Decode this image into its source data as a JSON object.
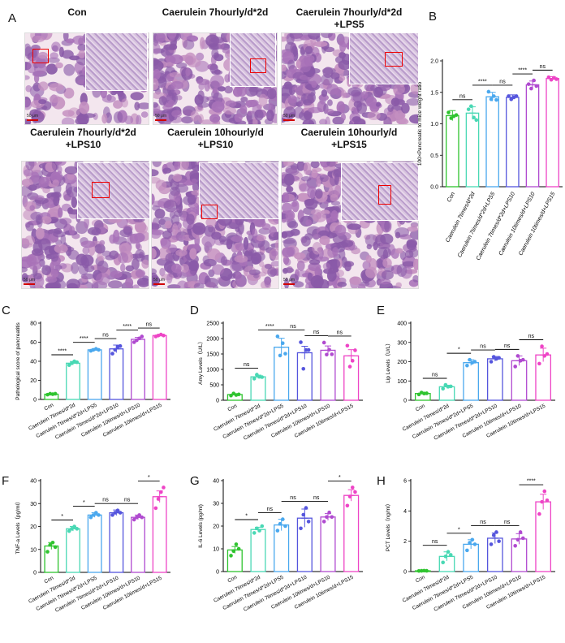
{
  "panel_letters": [
    "A",
    "B",
    "C",
    "D",
    "E",
    "F",
    "G",
    "H"
  ],
  "histology": {
    "panels": [
      {
        "title": "Con"
      },
      {
        "title": "Caerulein 7hourly/d*2d"
      },
      {
        "title": "Caerulein 7hourly/d*2d\n+LPS5"
      },
      {
        "title": "Caerulein 7hourly/d*2d\n+LPS10"
      },
      {
        "title": "Caerulein 10hourly/d\n+LPS10"
      },
      {
        "title": "Caerulein 10hourly/d\n+LPS15"
      }
    ],
    "scale_label": "50 μm"
  },
  "colors": {
    "g1": "#2fc42f",
    "g2": "#49d8b4",
    "g3": "#4aa8ee",
    "g4": "#5555dd",
    "g5": "#b04ad0",
    "g6": "#ee44c6",
    "tissue_pink": "#e8c8dc",
    "tissue_purple": "#8a5aa8",
    "redbox": "#e00000"
  },
  "chart_data": [
    {
      "id": "B",
      "type": "bar",
      "categories": [
        "Con",
        "Caerulein 7times/d*2d",
        "Caerulein 7times/d*2d+LPS5",
        "Caerulein 7times/d*2d+LPS10",
        "Caerulein 10times/d+LPS10",
        "Caerulein 10times/d+LPS15"
      ],
      "values": [
        1.13,
        1.17,
        1.43,
        1.42,
        1.62,
        1.72
      ],
      "errors": [
        0.08,
        0.1,
        0.07,
        0.04,
        0.06,
        0.03
      ],
      "points": [
        [
          1.18,
          1.09,
          1.12,
          1.14
        ],
        [
          1.23,
          1.28,
          1.1,
          1.06
        ],
        [
          1.51,
          1.39,
          1.44,
          1.38
        ],
        [
          1.44,
          1.39,
          1.42,
          1.44
        ],
        [
          1.63,
          1.56,
          1.69,
          1.6
        ],
        [
          1.74,
          1.7,
          1.73,
          1.71
        ]
      ],
      "ylabel": "100×Pancreatic to mice weight ratio",
      "ylim": [
        0,
        2.0
      ],
      "yticks": [
        "0.0",
        "0.5",
        "1.0",
        "1.5",
        "2.0"
      ],
      "significance": [
        {
          "a": 0,
          "b": 1,
          "label": "ns"
        },
        {
          "a": 1,
          "b": 2,
          "label": "****"
        },
        {
          "a": 2,
          "b": 3,
          "label": "ns"
        },
        {
          "a": 3,
          "b": 4,
          "label": "****"
        },
        {
          "a": 4,
          "b": 5,
          "label": "ns"
        }
      ]
    },
    {
      "id": "C",
      "type": "bar",
      "categories": [
        "Con",
        "Caerulein 7times/d*2d",
        "Caerulein 7times/d*2d+LPS5",
        "Caerulein 7times/d*2d+LPS10",
        "Caerulein 10times/d+LPS10",
        "Caerulein 10times/d+LPS15"
      ],
      "values": [
        5.5,
        38,
        52,
        53,
        63,
        67
      ],
      "errors": [
        0.6,
        1.8,
        1.0,
        4.0,
        2.0,
        0.8
      ],
      "points": [
        [
          5,
          6,
          5.5,
          6
        ],
        [
          36,
          38,
          40,
          39
        ],
        [
          51,
          52,
          53,
          52
        ],
        [
          48,
          52,
          55,
          56
        ],
        [
          60,
          62,
          64,
          66
        ],
        [
          66,
          67,
          68,
          67
        ]
      ],
      "ylabel": "Pathological score of pancreatitis",
      "ylim": [
        0,
        80
      ],
      "yticks": [
        "0",
        "20",
        "40",
        "60",
        "80"
      ],
      "significance": [
        {
          "a": 0,
          "b": 1,
          "label": "****"
        },
        {
          "a": 1,
          "b": 2,
          "label": "****"
        },
        {
          "a": 2,
          "b": 3,
          "label": "ns"
        },
        {
          "a": 3,
          "b": 4,
          "label": "****"
        },
        {
          "a": 4,
          "b": 5,
          "label": "ns"
        }
      ]
    },
    {
      "id": "D",
      "type": "bar",
      "categories": [
        "Con",
        "Caerulein 7times/d*2d",
        "Caerulein 7times/d*2d+LPS5",
        "Caerulein 7times/d*2d+LPS10",
        "Caerulein 10times/d+LPS10",
        "Caerulein 10times/d+LPS15"
      ],
      "values": [
        185,
        760,
        1720,
        1540,
        1620,
        1440
      ],
      "errors": [
        20,
        55,
        290,
        210,
        140,
        200
      ],
      "points": [
        [
          150,
          220,
          170,
          190
        ],
        [
          700,
          830,
          760,
          750
        ],
        [
          2070,
          1450,
          1850,
          1510
        ],
        [
          1880,
          1020,
          1630,
          1630
        ],
        [
          1870,
          1480,
          1640,
          1490
        ],
        [
          1770,
          1090,
          1280,
          1620
        ]
      ],
      "ylabel": "Amy Levels（U/L）",
      "ylim": [
        0,
        2500
      ],
      "yticks": [
        "0",
        "500",
        "1000",
        "1500",
        "2000",
        "2500"
      ],
      "significance": [
        {
          "a": 0,
          "b": 1,
          "label": "ns"
        },
        {
          "a": 1,
          "b": 2,
          "label": "****"
        },
        {
          "a": 2,
          "b": 3,
          "label": "ns"
        },
        {
          "a": 3,
          "b": 4,
          "label": "ns"
        },
        {
          "a": 4,
          "b": 5,
          "label": "ns"
        }
      ]
    },
    {
      "id": "E",
      "type": "bar",
      "categories": [
        "Con",
        "Caerulein 7times/d*2d",
        "Caerulein 7times/d*2d+LPS5",
        "Caerulein 7times/d*2d+LPS10",
        "Caerulein 10times/d+LPS10",
        "Caerulein 10times/d+LPS15"
      ],
      "values": [
        35,
        70,
        195,
        215,
        205,
        235
      ],
      "errors": [
        4,
        8,
        15,
        12,
        25,
        35
      ],
      "points": [
        [
          30,
          40,
          35,
          36
        ],
        [
          60,
          80,
          70,
          72
        ],
        [
          180,
          210,
          195,
          200
        ],
        [
          200,
          225,
          215,
          220
        ],
        [
          175,
          230,
          205,
          210
        ],
        [
          190,
          280,
          230,
          240
        ]
      ],
      "ylabel": "Lip Levels（U/L）",
      "ylim": [
        0,
        400
      ],
      "yticks": [
        "0",
        "100",
        "200",
        "300",
        "400"
      ],
      "significance": [
        {
          "a": 0,
          "b": 1,
          "label": "ns"
        },
        {
          "a": 1,
          "b": 2,
          "label": "*"
        },
        {
          "a": 2,
          "b": 3,
          "label": "ns"
        },
        {
          "a": 3,
          "b": 4,
          "label": "ns"
        },
        {
          "a": 4,
          "b": 5,
          "label": "ns"
        }
      ]
    },
    {
      "id": "F",
      "type": "bar",
      "categories": [
        "Con",
        "Caerulein 7times/d*2d",
        "Caerulein 7times/d*2d+LPS5",
        "Caerulein 7times/d*2d+LPS10",
        "Caerulein 10times/d+LPS10",
        "Caerulein 10times/d+LPS15"
      ],
      "values": [
        11.5,
        19,
        25,
        26,
        24,
        33
      ],
      "errors": [
        1.5,
        1.0,
        1.0,
        1.2,
        1.0,
        2.5
      ],
      "points": [
        [
          9,
          12,
          13,
          11
        ],
        [
          18,
          19,
          20,
          19
        ],
        [
          24,
          25,
          26,
          25
        ],
        [
          25,
          26,
          27,
          26
        ],
        [
          23,
          24,
          25,
          24
        ],
        [
          28,
          32,
          35,
          37
        ]
      ],
      "ylabel": "TNF-a Levels（pg/ml）",
      "ylim": [
        0,
        40
      ],
      "yticks": [
        "0",
        "10",
        "20",
        "30",
        "40"
      ],
      "significance": [
        {
          "a": 0,
          "b": 1,
          "label": "*"
        },
        {
          "a": 1,
          "b": 2,
          "label": "*"
        },
        {
          "a": 2,
          "b": 3,
          "label": "ns"
        },
        {
          "a": 3,
          "b": 4,
          "label": "ns"
        },
        {
          "a": 4,
          "b": 5,
          "label": "*"
        }
      ]
    },
    {
      "id": "G",
      "type": "bar",
      "categories": [
        "Con",
        "Caerulein 7times/d*2d",
        "Caerulein 7times/d*2d+LPS5",
        "Caerulein 7times/d*2d+LPS10",
        "Caerulein 10times/d+LPS10",
        "Caerulein 10times/d+LPS15"
      ],
      "values": [
        9.5,
        18.5,
        20.5,
        23.5,
        24,
        33.5
      ],
      "errors": [
        1.5,
        1.0,
        2.5,
        4.0,
        1.5,
        2.5
      ],
      "points": [
        [
          7,
          9,
          12,
          10
        ],
        [
          17,
          19,
          18,
          20
        ],
        [
          18,
          21,
          23,
          20
        ],
        [
          19,
          25,
          28,
          22
        ],
        [
          22,
          24,
          26,
          24
        ],
        [
          29,
          33,
          37,
          35
        ]
      ],
      "ylabel": "IL-6 Levels (pg/ml)",
      "ylim": [
        0,
        40
      ],
      "yticks": [
        "0",
        "10",
        "20",
        "30",
        "40"
      ],
      "significance": [
        {
          "a": 0,
          "b": 1,
          "label": "*"
        },
        {
          "a": 1,
          "b": 2,
          "label": "ns"
        },
        {
          "a": 2,
          "b": 3,
          "label": "ns"
        },
        {
          "a": 3,
          "b": 4,
          "label": "ns"
        },
        {
          "a": 4,
          "b": 5,
          "label": "*"
        }
      ]
    },
    {
      "id": "H",
      "type": "bar",
      "categories": [
        "Con",
        "Caerulein 7times/d*2d",
        "Caerulein 7times/d*2d+LPS5",
        "Caerulein 7times/d*2d+LPS10",
        "Caerulein 10times/d+LPS10",
        "Caerulein 10times/d+LPS15"
      ],
      "values": [
        0.05,
        1.0,
        1.8,
        2.2,
        2.15,
        4.6
      ],
      "errors": [
        0.02,
        0.3,
        0.3,
        0.35,
        0.35,
        0.5
      ],
      "points": [
        [
          0.04,
          0.05,
          0.06,
          0.05
        ],
        [
          0.6,
          1.0,
          1.3,
          1.1
        ],
        [
          1.4,
          1.9,
          2.1,
          1.8
        ],
        [
          1.8,
          2.4,
          2.6,
          2.0
        ],
        [
          1.7,
          2.1,
          2.6,
          2.2
        ],
        [
          3.8,
          4.6,
          5.3,
          4.7
        ]
      ],
      "ylabel": "PCT Levels（ng/ml）",
      "ylim": [
        0,
        6
      ],
      "yticks": [
        "0",
        "2",
        "4",
        "6"
      ],
      "significance": [
        {
          "a": 0,
          "b": 1,
          "label": "ns"
        },
        {
          "a": 1,
          "b": 2,
          "label": "*"
        },
        {
          "a": 2,
          "b": 3,
          "label": "ns"
        },
        {
          "a": 3,
          "b": 4,
          "label": "ns"
        },
        {
          "a": 4,
          "b": 5,
          "label": "****"
        }
      ]
    }
  ]
}
